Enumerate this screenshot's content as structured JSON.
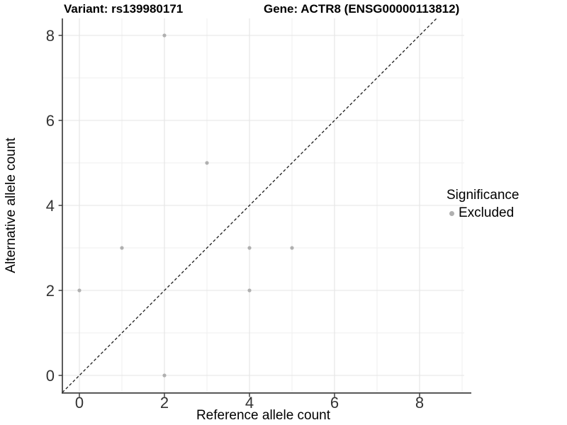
{
  "chart_data": {
    "type": "scatter",
    "title_variant": "Variant: rs139980171",
    "title_gene": "Gene: ACTR8 (ENSG00000113812)",
    "xlabel": "Reference allele count",
    "ylabel": "Alternative allele count",
    "x_ticks": [
      0,
      2,
      4,
      6,
      8
    ],
    "y_ticks": [
      0,
      2,
      4,
      6,
      8
    ],
    "x_minor_ticks": [
      1,
      3,
      5,
      7,
      9
    ],
    "y_minor_ticks": [
      1,
      3,
      5,
      7
    ],
    "xlim": [
      -0.4,
      9.2
    ],
    "ylim": [
      -0.4,
      8.4
    ],
    "grid": true,
    "series": [
      {
        "name": "Excluded",
        "color": "#b0b0b0",
        "points": [
          [
            0,
            2
          ],
          [
            1,
            3
          ],
          [
            2,
            0
          ],
          [
            2,
            8
          ],
          [
            3,
            5
          ],
          [
            4,
            2
          ],
          [
            4,
            3
          ],
          [
            5,
            3
          ]
        ]
      }
    ],
    "reference_line": {
      "kind": "identity",
      "equation": "y = x",
      "style": "dashed",
      "color": "#1a1a1a"
    },
    "legend": {
      "title": "Significance",
      "position": "right",
      "items": [
        {
          "label": "Excluded",
          "color": "#b0b0b0"
        }
      ]
    }
  },
  "colors": {
    "background": "#ffffff",
    "axis_line": "#333333",
    "tick_label": "#333333",
    "grid_major": "#e4e4e4",
    "grid_minor": "#efefef",
    "point": "#b0b0b0"
  }
}
